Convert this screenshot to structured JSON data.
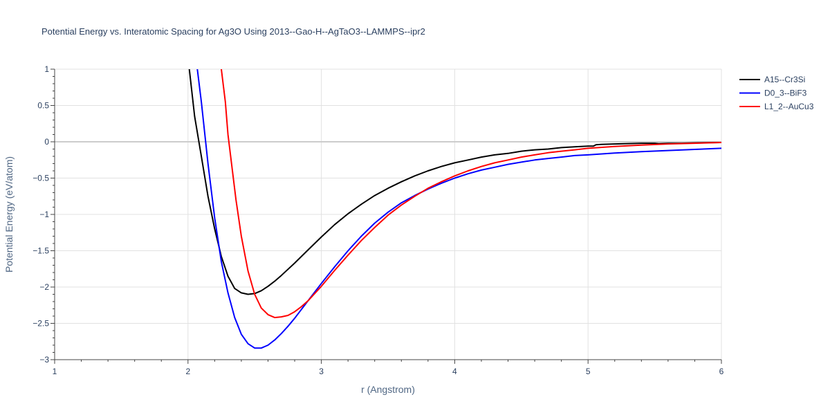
{
  "chart_data": {
    "type": "line",
    "title": "Potential Energy vs. Interatomic Spacing for Ag3O Using 2013--Gao-H--AgTaO3--LAMMPS--ipr2",
    "xlabel": "r (Angstrom)",
    "ylabel": "Potential Energy (eV/atom)",
    "xlim": [
      1,
      6
    ],
    "ylim": [
      -3,
      1
    ],
    "xticks": [
      "1",
      "2",
      "3",
      "4",
      "5",
      "6"
    ],
    "yticks": [
      "1",
      "0.5",
      "0",
      "−0.5",
      "−1",
      "−1.5",
      "−2",
      "−2.5",
      "−3"
    ],
    "grid": true,
    "legend_position": "top-right",
    "series": [
      {
        "name": "A15--Cr3Si",
        "color": "#000000",
        "x": [
          2.01,
          2.05,
          2.1,
          2.15,
          2.2,
          2.25,
          2.3,
          2.35,
          2.4,
          2.45,
          2.5,
          2.55,
          2.6,
          2.65,
          2.7,
          2.8,
          2.9,
          3.0,
          3.1,
          3.2,
          3.3,
          3.4,
          3.5,
          3.6,
          3.7,
          3.8,
          3.9,
          4.0,
          4.1,
          4.2,
          4.3,
          4.4,
          4.5,
          4.6,
          4.7,
          4.8,
          4.9,
          5.0,
          5.04,
          5.06,
          5.1,
          5.2,
          5.3,
          5.4,
          5.5,
          5.53,
          5.6,
          5.7,
          5.8,
          5.9,
          6.0
        ],
        "y": [
          1.0,
          0.35,
          -0.2,
          -0.75,
          -1.2,
          -1.58,
          -1.85,
          -2.02,
          -2.08,
          -2.1,
          -2.09,
          -2.05,
          -1.99,
          -1.92,
          -1.84,
          -1.67,
          -1.49,
          -1.31,
          -1.14,
          -0.99,
          -0.86,
          -0.74,
          -0.64,
          -0.55,
          -0.47,
          -0.4,
          -0.34,
          -0.29,
          -0.25,
          -0.21,
          -0.18,
          -0.16,
          -0.13,
          -0.11,
          -0.1,
          -0.08,
          -0.07,
          -0.06,
          -0.06,
          -0.04,
          -0.035,
          -0.03,
          -0.025,
          -0.02,
          -0.02,
          -0.025,
          -0.02,
          -0.02,
          -0.015,
          -0.012,
          -0.01
        ]
      },
      {
        "name": "D0_3--BiF3",
        "color": "#0000ff",
        "x": [
          2.07,
          2.1,
          2.15,
          2.2,
          2.25,
          2.3,
          2.35,
          2.4,
          2.45,
          2.5,
          2.55,
          2.6,
          2.65,
          2.7,
          2.75,
          2.8,
          2.9,
          3.0,
          3.1,
          3.2,
          3.3,
          3.4,
          3.5,
          3.6,
          3.7,
          3.8,
          3.9,
          4.0,
          4.1,
          4.2,
          4.3,
          4.4,
          4.5,
          4.6,
          4.7,
          4.8,
          4.9,
          5.0,
          5.2,
          5.4,
          5.6,
          5.8,
          6.0
        ],
        "y": [
          1.0,
          0.55,
          -0.3,
          -1.05,
          -1.65,
          -2.08,
          -2.42,
          -2.65,
          -2.78,
          -2.84,
          -2.84,
          -2.8,
          -2.73,
          -2.64,
          -2.54,
          -2.43,
          -2.19,
          -1.95,
          -1.72,
          -1.5,
          -1.3,
          -1.12,
          -0.97,
          -0.84,
          -0.74,
          -0.65,
          -0.57,
          -0.5,
          -0.44,
          -0.39,
          -0.35,
          -0.31,
          -0.28,
          -0.25,
          -0.23,
          -0.21,
          -0.19,
          -0.18,
          -0.155,
          -0.135,
          -0.12,
          -0.105,
          -0.09
        ]
      },
      {
        "name": "L1_2--AuCu3",
        "color": "#ff0000",
        "x": [
          2.25,
          2.28,
          2.3,
          2.33,
          2.36,
          2.4,
          2.45,
          2.5,
          2.55,
          2.6,
          2.65,
          2.7,
          2.75,
          2.8,
          2.85,
          2.9,
          3.0,
          3.1,
          3.2,
          3.3,
          3.4,
          3.5,
          3.6,
          3.7,
          3.8,
          3.9,
          4.0,
          4.1,
          4.2,
          4.3,
          4.4,
          4.5,
          4.6,
          4.7,
          4.8,
          4.9,
          5.0,
          5.2,
          5.4,
          5.6,
          5.8,
          6.0
        ],
        "y": [
          1.0,
          0.55,
          0.1,
          -0.35,
          -0.8,
          -1.3,
          -1.78,
          -2.1,
          -2.29,
          -2.38,
          -2.42,
          -2.41,
          -2.39,
          -2.34,
          -2.27,
          -2.19,
          -1.99,
          -1.77,
          -1.56,
          -1.36,
          -1.18,
          -1.01,
          -0.87,
          -0.75,
          -0.64,
          -0.55,
          -0.47,
          -0.4,
          -0.34,
          -0.29,
          -0.25,
          -0.21,
          -0.18,
          -0.15,
          -0.13,
          -0.11,
          -0.09,
          -0.065,
          -0.045,
          -0.03,
          -0.02,
          -0.01
        ]
      }
    ]
  }
}
